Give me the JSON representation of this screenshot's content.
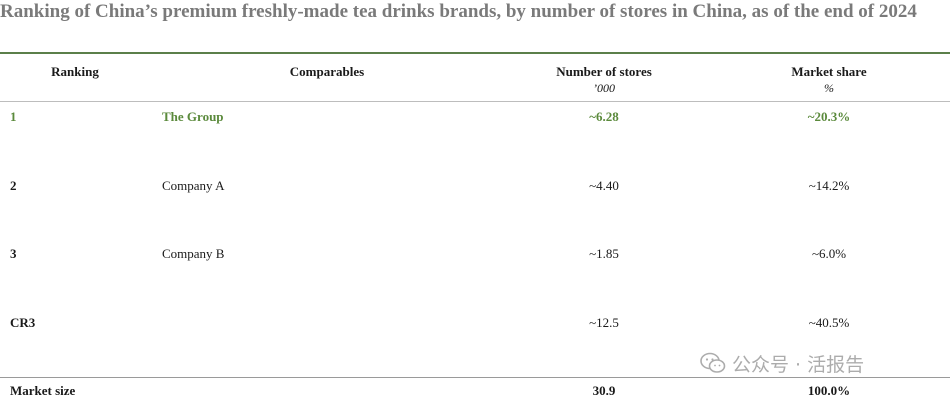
{
  "title": "Ranking of China’s premium freshly-made tea drinks brands, by number of stores in China, as of the end of 2024",
  "columns": {
    "ranking": "Ranking",
    "comparables": "Comparables",
    "stores": "Number of stores",
    "stores_unit": "’000",
    "share": "Market share",
    "share_unit": "%"
  },
  "rows": [
    {
      "rank": "1",
      "name": "The Group",
      "stores": "~6.28",
      "share": "~20.3%"
    },
    {
      "rank": "2",
      "name": "Company A",
      "stores": "~4.40",
      "share": "~14.2%"
    },
    {
      "rank": "3",
      "name": "Company B",
      "stores": "~1.85",
      "share": "~6.0%"
    },
    {
      "rank": "CR3",
      "name": "",
      "stores": "~12.5",
      "share": "~40.5%"
    }
  ],
  "footer": {
    "label": "Market size",
    "stores": "30.9",
    "share": "100.0%"
  },
  "watermark": {
    "text": "公众号 · 活报告",
    "icon": "wechat-icon"
  },
  "colors": {
    "accent": "#5b8a3c",
    "rule": "#5b7f4a"
  }
}
